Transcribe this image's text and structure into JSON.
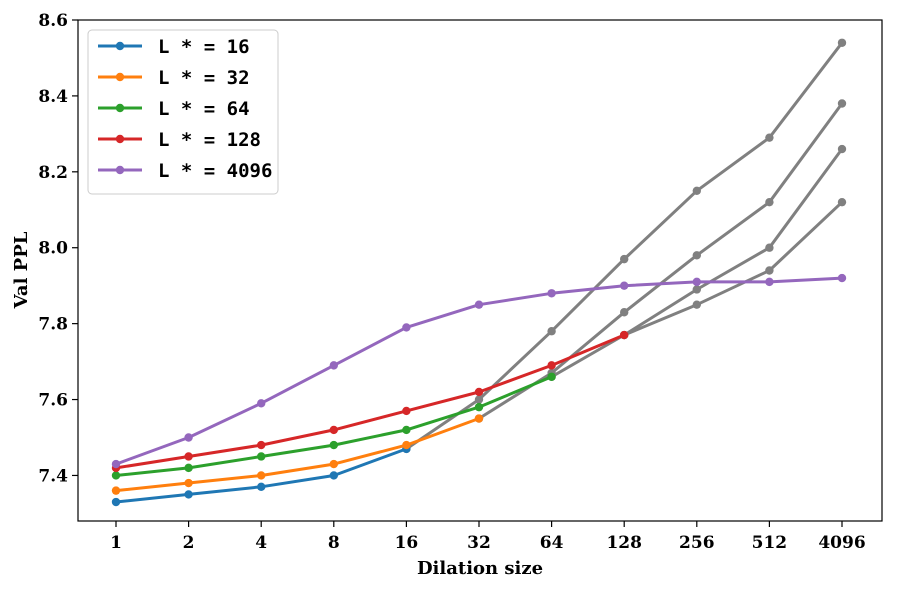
{
  "chart_data": {
    "type": "line",
    "xlabel": "Dilation size",
    "ylabel": "Val PPL",
    "title": "",
    "ylim": [
      7.28,
      8.6
    ],
    "y_ticks": [
      "7.4",
      "7.6",
      "7.8",
      "8.0",
      "8.2",
      "8.4",
      "8.6"
    ],
    "categories": [
      "1",
      "2",
      "4",
      "8",
      "16",
      "32",
      "64",
      "128",
      "256",
      "512",
      "4096"
    ],
    "legend_position": "top-left",
    "series": [
      {
        "name": "L * = 16",
        "color": "#1f77b4",
        "values": [
          7.33,
          7.35,
          7.37,
          7.4,
          7.47,
          null,
          null,
          null,
          null,
          null,
          null
        ],
        "extrapolated": [
          null,
          null,
          null,
          null,
          7.47,
          7.6,
          7.78,
          7.97,
          8.15,
          8.29,
          8.54
        ]
      },
      {
        "name": "L * = 32",
        "color": "#ff7f0e",
        "values": [
          7.36,
          7.38,
          7.4,
          7.43,
          7.48,
          7.55,
          null,
          null,
          null,
          null,
          null
        ],
        "extrapolated": [
          null,
          null,
          null,
          null,
          null,
          7.55,
          7.67,
          7.83,
          7.98,
          8.12,
          8.38
        ]
      },
      {
        "name": "L * = 64",
        "color": "#2ca02c",
        "values": [
          7.4,
          7.42,
          7.45,
          7.48,
          7.52,
          7.58,
          7.66,
          null,
          null,
          null,
          null
        ],
        "extrapolated": [
          null,
          null,
          null,
          null,
          null,
          null,
          7.66,
          7.77,
          7.89,
          8.0,
          8.26
        ]
      },
      {
        "name": "L * = 128",
        "color": "#d62728",
        "values": [
          7.42,
          7.45,
          7.48,
          7.52,
          7.57,
          7.62,
          7.69,
          7.77,
          null,
          null,
          null
        ],
        "extrapolated": [
          null,
          null,
          null,
          null,
          null,
          null,
          null,
          7.77,
          7.85,
          7.94,
          8.12
        ]
      },
      {
        "name": "L * = 4096",
        "color": "#9467bd",
        "values": [
          7.43,
          7.5,
          7.59,
          7.69,
          7.79,
          7.85,
          7.88,
          7.9,
          7.91,
          7.91,
          7.92
        ],
        "extrapolated": [
          null,
          null,
          null,
          null,
          null,
          null,
          null,
          null,
          null,
          null,
          null
        ]
      }
    ],
    "extrapolation_color": "#808080"
  }
}
